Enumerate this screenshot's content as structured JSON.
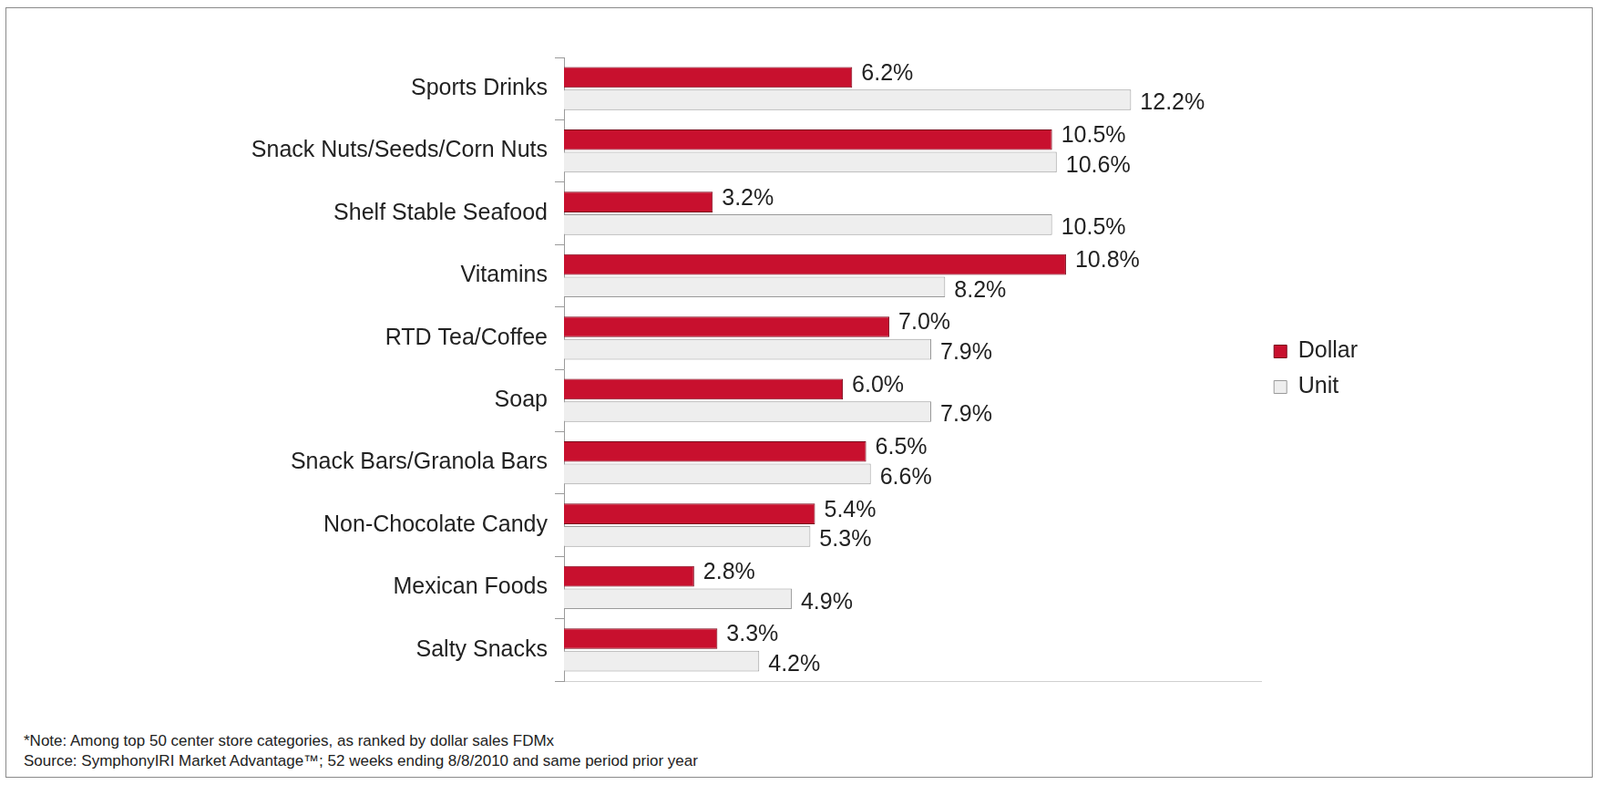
{
  "chart_data": {
    "type": "bar",
    "orientation": "horizontal",
    "categories": [
      "Sports Drinks",
      "Snack Nuts/Seeds/Corn Nuts",
      "Shelf Stable Seafood",
      "Vitamins",
      "RTD Tea/Coffee",
      "Soap",
      "Snack Bars/Granola Bars",
      "Non-Chocolate Candy",
      "Mexican Foods",
      "Salty Snacks"
    ],
    "series": [
      {
        "name": "Dollar",
        "color": "#c8102e",
        "values": [
          6.2,
          10.5,
          3.2,
          10.8,
          7.0,
          6.0,
          6.5,
          5.4,
          2.8,
          3.3
        ],
        "value_labels": [
          "6.2%",
          "10.5%",
          "3.2%",
          "10.8%",
          "7.0%",
          "6.0%",
          "6.5%",
          "5.4%",
          "2.8%",
          "3.3%"
        ]
      },
      {
        "name": "Unit",
        "color": "#eeeeee",
        "values": [
          12.2,
          10.6,
          10.5,
          8.2,
          7.9,
          7.9,
          6.6,
          5.3,
          4.9,
          4.2
        ],
        "value_labels": [
          "12.2%",
          "10.6%",
          "10.5%",
          "8.2%",
          "7.9%",
          "7.9%",
          "6.6%",
          "5.3%",
          "4.9%",
          "4.2%"
        ]
      }
    ],
    "xlim": [
      0,
      15
    ],
    "grid": false,
    "legend": "right",
    "data_labels": true,
    "tick_labels": "y",
    "annotations": [
      "*Note:  Among top 50 center store categories, as ranked by dollar sales FDMx",
      "Source:  SymphonyIRI Market Advantage™; 52 weeks ending 8/8/2010 and same period prior year"
    ]
  }
}
